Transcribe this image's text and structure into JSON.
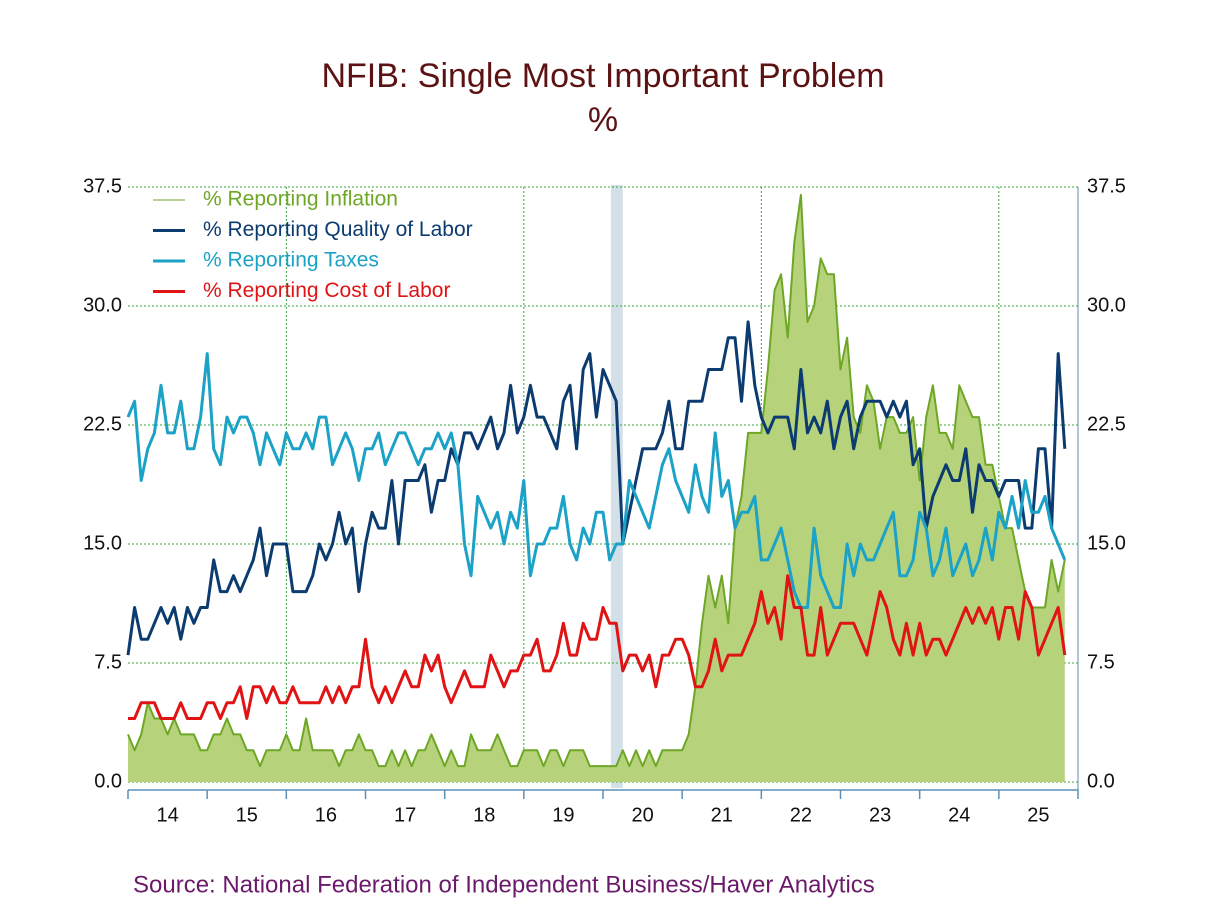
{
  "chart_data": {
    "type": "line",
    "title": "NFIB: Single Most Important Problem",
    "subtitle": "%",
    "source": "Source:  National Federation of Independent Business/Haver Analytics",
    "x": [
      14,
      14.083,
      14.167,
      14.25,
      14.333,
      14.417,
      14.5,
      14.583,
      14.667,
      14.75,
      14.833,
      14.917,
      15,
      15.083,
      15.167,
      15.25,
      15.333,
      15.417,
      15.5,
      15.583,
      15.667,
      15.75,
      15.833,
      15.917,
      16,
      16.083,
      16.167,
      16.25,
      16.333,
      16.417,
      16.5,
      16.583,
      16.667,
      16.75,
      16.833,
      16.917,
      17,
      17.083,
      17.167,
      17.25,
      17.333,
      17.417,
      17.5,
      17.583,
      17.667,
      17.75,
      17.833,
      17.917,
      18,
      18.083,
      18.167,
      18.25,
      18.333,
      18.417,
      18.5,
      18.583,
      18.667,
      18.75,
      18.833,
      18.917,
      19,
      19.083,
      19.167,
      19.25,
      19.333,
      19.417,
      19.5,
      19.583,
      19.667,
      19.75,
      19.833,
      19.917,
      20,
      20.083,
      20.167,
      20.25,
      20.333,
      20.417,
      20.5,
      20.583,
      20.667,
      20.75,
      20.833,
      20.917,
      21,
      21.083,
      21.167,
      21.25,
      21.333,
      21.417,
      21.5,
      21.583,
      21.667,
      21.75,
      21.833,
      21.917,
      22,
      22.083,
      22.167,
      22.25,
      22.333,
      22.417,
      22.5,
      22.583,
      22.667,
      22.75,
      22.833,
      22.917,
      23,
      23.083,
      23.167,
      23.25,
      23.333,
      23.417,
      23.5,
      23.583,
      23.667,
      23.75,
      23.833,
      23.917,
      24,
      24.083,
      24.167,
      24.25,
      24.333,
      24.417,
      24.5,
      24.583,
      24.667,
      24.75,
      24.833,
      24.917,
      25,
      25.083,
      25.167,
      25.25,
      25.333,
      25.417,
      25.5,
      25.583,
      25.667,
      25.75,
      25.833
    ],
    "series": [
      {
        "name": "% Reporting Inflation",
        "color": "#6ea626",
        "fill": "#b6d37c",
        "style": "area",
        "values": [
          3,
          2,
          3,
          5,
          4,
          4,
          3,
          4,
          3,
          3,
          3,
          2,
          2,
          3,
          3,
          4,
          3,
          3,
          2,
          2,
          1,
          2,
          2,
          2,
          3,
          2,
          2,
          4,
          2,
          2,
          2,
          2,
          1,
          2,
          2,
          3,
          2,
          2,
          1,
          1,
          2,
          1,
          2,
          1,
          2,
          2,
          3,
          2,
          1,
          2,
          1,
          1,
          3,
          2,
          2,
          2,
          3,
          2,
          1,
          1,
          2,
          2,
          2,
          1,
          2,
          2,
          1,
          2,
          2,
          2,
          1,
          1,
          1,
          1,
          1,
          2,
          1,
          2,
          1,
          2,
          1,
          2,
          2,
          2,
          2,
          3,
          6,
          10,
          13,
          11,
          13,
          10,
          16,
          18,
          22,
          22,
          22,
          26,
          31,
          32,
          28,
          34,
          37,
          29,
          30,
          33,
          32,
          32,
          26,
          28,
          23,
          22,
          25,
          24,
          21,
          23,
          23,
          22,
          22,
          23,
          19,
          23,
          25,
          22,
          22,
          21,
          25,
          24,
          23,
          23,
          20,
          20,
          18,
          16,
          16,
          14,
          12,
          11,
          11,
          11,
          14,
          12,
          14
        ]
      },
      {
        "name": "% Reporting Quality of Labor",
        "color": "#0c3b70",
        "style": "line",
        "values": [
          8,
          11,
          9,
          9,
          10,
          11,
          10,
          11,
          9,
          11,
          10,
          11,
          11,
          14,
          12,
          12,
          13,
          12,
          13,
          14,
          16,
          13,
          15,
          15,
          15,
          12,
          12,
          12,
          13,
          15,
          14,
          15,
          17,
          15,
          16,
          12,
          15,
          17,
          16,
          16,
          19,
          15,
          19,
          19,
          19,
          20,
          17,
          19,
          19,
          21,
          20,
          22,
          22,
          21,
          22,
          23,
          21,
          22,
          25,
          22,
          23,
          25,
          23,
          23,
          22,
          21,
          24,
          25,
          21,
          26,
          27,
          23,
          26,
          25,
          24,
          15,
          17,
          19,
          21,
          21,
          21,
          22,
          24,
          21,
          21,
          24,
          24,
          24,
          26,
          26,
          26,
          28,
          28,
          24,
          29,
          25,
          23,
          22,
          23,
          23,
          23,
          21,
          26,
          22,
          23,
          22,
          24,
          21,
          23,
          24,
          21,
          23,
          24,
          24,
          24,
          23,
          24,
          23,
          24,
          20,
          21,
          16,
          18,
          19,
          20,
          19,
          19,
          21,
          17,
          20,
          19,
          19,
          18,
          19,
          19,
          19,
          16,
          16,
          21,
          21,
          16,
          27,
          21
        ]
      },
      {
        "name": "% Reporting Taxes",
        "color": "#1ba2c6",
        "style": "line",
        "values": [
          23,
          24,
          19,
          21,
          22,
          25,
          22,
          22,
          24,
          21,
          21,
          23,
          27,
          21,
          20,
          23,
          22,
          23,
          23,
          22,
          20,
          22,
          21,
          20,
          22,
          21,
          21,
          22,
          21,
          23,
          23,
          20,
          21,
          22,
          21,
          19,
          21,
          21,
          22,
          20,
          21,
          22,
          22,
          21,
          20,
          21,
          21,
          22,
          21,
          22,
          20,
          15,
          13,
          18,
          17,
          16,
          17,
          15,
          17,
          16,
          19,
          13,
          15,
          15,
          16,
          16,
          18,
          15,
          14,
          16,
          15,
          17,
          17,
          14,
          15,
          15,
          19,
          18,
          17,
          16,
          18,
          20,
          21,
          19,
          18,
          17,
          20,
          18,
          17,
          22,
          18,
          19,
          16,
          17,
          17,
          18,
          14,
          14,
          15,
          16,
          14,
          12,
          11,
          11,
          16,
          13,
          12,
          11,
          11,
          15,
          13,
          15,
          14,
          14,
          15,
          16,
          17,
          13,
          13,
          14,
          17,
          16,
          13,
          14,
          16,
          13,
          14,
          15,
          13,
          14,
          16,
          14,
          17,
          16,
          18,
          16,
          19,
          17,
          17,
          18,
          16,
          15,
          14
        ]
      },
      {
        "name": "% Reporting Cost of Labor",
        "color": "#e01414",
        "style": "line",
        "values": [
          4,
          4,
          5,
          5,
          5,
          4,
          4,
          4,
          5,
          4,
          4,
          4,
          5,
          5,
          4,
          5,
          5,
          6,
          4,
          6,
          6,
          5,
          6,
          5,
          5,
          6,
          5,
          5,
          5,
          5,
          6,
          5,
          6,
          5,
          6,
          6,
          9,
          6,
          5,
          6,
          5,
          6,
          7,
          6,
          6,
          8,
          7,
          8,
          6,
          5,
          6,
          7,
          6,
          6,
          6,
          8,
          7,
          6,
          7,
          7,
          8,
          8,
          9,
          7,
          7,
          8,
          10,
          8,
          8,
          10,
          9,
          9,
          11,
          10,
          10,
          7,
          8,
          8,
          7,
          8,
          6,
          8,
          8,
          9,
          9,
          8,
          6,
          6,
          7,
          9,
          7,
          8,
          8,
          8,
          9,
          10,
          12,
          10,
          11,
          9,
          13,
          11,
          11,
          8,
          8,
          11,
          8,
          9,
          10,
          10,
          10,
          9,
          8,
          10,
          12,
          11,
          9,
          8,
          10,
          8,
          10,
          8,
          9,
          9,
          8,
          9,
          10,
          11,
          10,
          11,
          10,
          11,
          9,
          11,
          11,
          9,
          12,
          11,
          8,
          9,
          10,
          11,
          8
        ]
      }
    ],
    "xlim": [
      14,
      26
    ],
    "xticks": [
      {
        "value": 14.5,
        "label": "14"
      },
      {
        "value": 15.5,
        "label": "15"
      },
      {
        "value": 16.5,
        "label": "16"
      },
      {
        "value": 17.5,
        "label": "17"
      },
      {
        "value": 18.5,
        "label": "18"
      },
      {
        "value": 19.5,
        "label": "19"
      },
      {
        "value": 20.5,
        "label": "20"
      },
      {
        "value": 21.5,
        "label": "21"
      },
      {
        "value": 22.5,
        "label": "22"
      },
      {
        "value": 23.5,
        "label": "23"
      },
      {
        "value": 24.5,
        "label": "24"
      },
      {
        "value": 25.5,
        "label": "25"
      }
    ],
    "xboundaries": [
      14,
      15,
      16,
      17,
      18,
      19,
      20,
      21,
      22,
      23,
      24,
      25,
      26
    ],
    "xgrid": [
      16,
      19,
      22,
      25
    ],
    "recession": [
      20.1,
      20.25
    ],
    "ylim": [
      0,
      37.5
    ],
    "yticks": [
      {
        "value": 0,
        "label": "0.0"
      },
      7.5,
      {
        "value": 15,
        "label": "15.0"
      },
      22.5,
      {
        "value": 30,
        "label": "30.0"
      },
      37.5
    ],
    "grid": true,
    "legend": "upper-left"
  }
}
